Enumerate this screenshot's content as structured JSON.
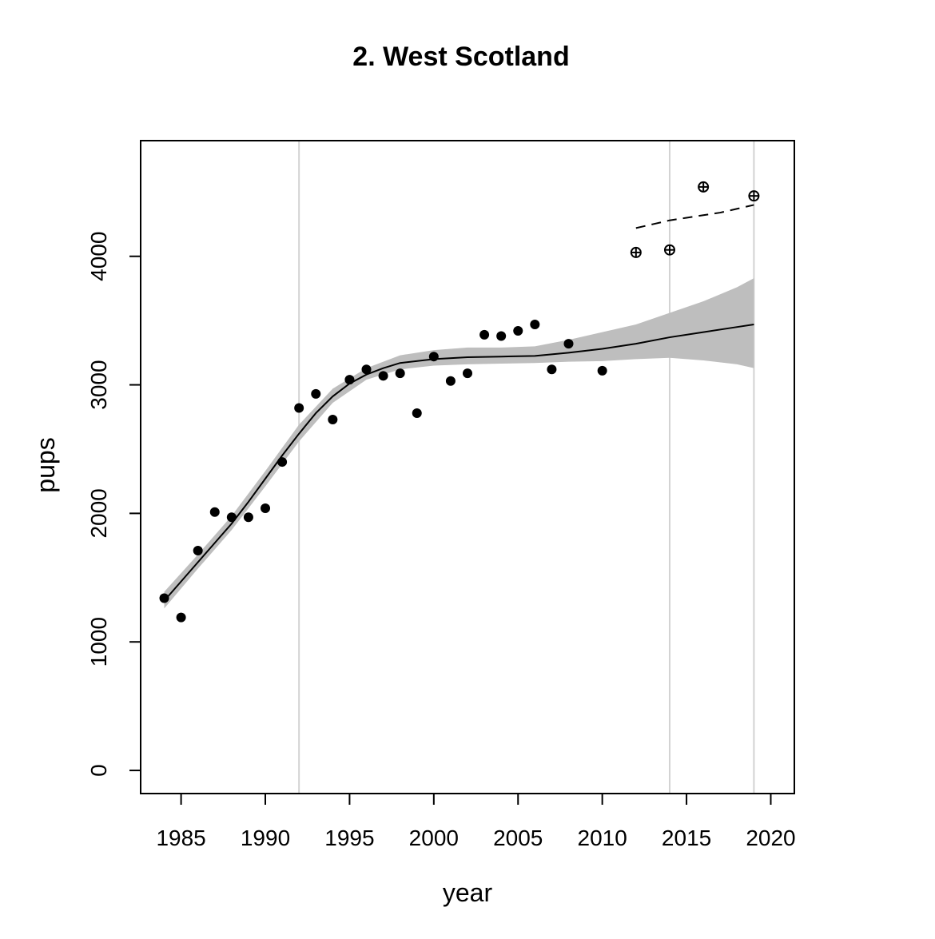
{
  "chart_data": {
    "type": "scatter",
    "title": "2. West Scotland",
    "xlabel": "year",
    "ylabel": "pups",
    "xlim": [
      1982.6,
      2021.4
    ],
    "ylim": [
      -180,
      4900
    ],
    "x_ticks": [
      1985,
      1990,
      1995,
      2000,
      2005,
      2010,
      2015,
      2020
    ],
    "y_ticks": [
      0,
      1000,
      2000,
      3000,
      4000
    ],
    "vertical_reference_lines": [
      1992,
      2014,
      2019
    ],
    "grid": false,
    "legend": "none",
    "series": [
      {
        "type": "scatter",
        "marker": "filled-circle",
        "x": [
          1984,
          1985,
          1986,
          1987,
          1988,
          1989,
          1990,
          1991,
          1992,
          1993,
          1994,
          1995,
          1996,
          1997,
          1998,
          1999,
          2000,
          2001,
          2002,
          2003,
          2004,
          2005,
          2006,
          2007,
          2008,
          2010
        ],
        "y": [
          1340,
          1190,
          1710,
          2010,
          1970,
          1970,
          2040,
          2400,
          2820,
          2930,
          2730,
          3040,
          3120,
          3070,
          3090,
          2780,
          3220,
          3030,
          3090,
          3390,
          3380,
          3420,
          3470,
          3120,
          3320,
          3110
        ]
      },
      {
        "type": "scatter",
        "marker": "crossed-circle",
        "x": [
          2012,
          2014,
          2016,
          2019
        ],
        "y": [
          4030,
          4050,
          4540,
          4470
        ]
      },
      {
        "type": "line",
        "style": "solid",
        "x": [
          1984,
          1985,
          1986,
          1987,
          1988,
          1989,
          1990,
          1991,
          1992,
          1993,
          1994,
          1995,
          1996,
          1997,
          1998,
          2000,
          2002,
          2004,
          2006,
          2008,
          2010,
          2012,
          2014,
          2016,
          2018,
          2019
        ],
        "y": [
          1320,
          1470,
          1620,
          1770,
          1920,
          2090,
          2270,
          2450,
          2620,
          2780,
          2910,
          3010,
          3080,
          3130,
          3170,
          3200,
          3215,
          3220,
          3225,
          3250,
          3280,
          3320,
          3370,
          3410,
          3450,
          3470
        ]
      },
      {
        "type": "area",
        "style": "confidence-band",
        "color": "#bebebe",
        "x": [
          1984,
          1986,
          1988,
          1990,
          1992,
          1994,
          1996,
          1998,
          2000,
          2002,
          2004,
          2006,
          2008,
          2010,
          2012,
          2014,
          2016,
          2018,
          2019
        ],
        "lower": [
          1260,
          1570,
          1870,
          2210,
          2560,
          2860,
          3040,
          3120,
          3150,
          3160,
          3165,
          3170,
          3180,
          3185,
          3200,
          3210,
          3190,
          3160,
          3130
        ],
        "upper": [
          1390,
          1680,
          1980,
          2330,
          2690,
          2970,
          3130,
          3230,
          3270,
          3290,
          3290,
          3300,
          3350,
          3410,
          3470,
          3560,
          3650,
          3760,
          3830
        ]
      },
      {
        "type": "line",
        "style": "dashed",
        "x": [
          2012,
          2013,
          2014,
          2015,
          2016,
          2017,
          2018,
          2019
        ],
        "y": [
          4220,
          4250,
          4280,
          4300,
          4320,
          4340,
          4370,
          4400
        ]
      }
    ],
    "colors": {
      "points": "#000000",
      "fit_line": "#000000",
      "band": "#bebebe",
      "reference_lines": "#d3d3d3",
      "frame": "#000000"
    }
  }
}
